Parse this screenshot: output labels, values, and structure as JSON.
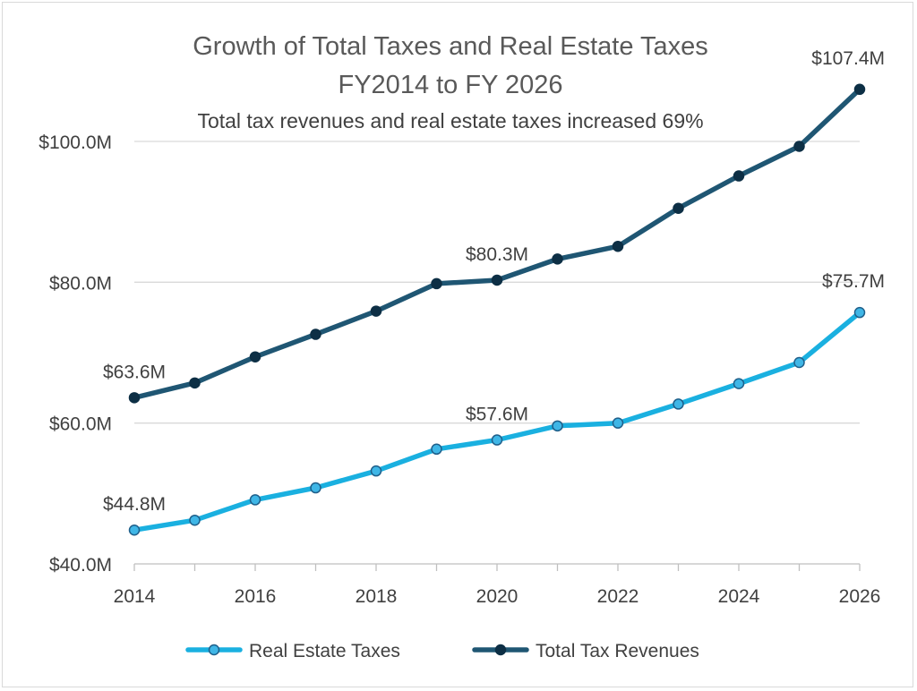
{
  "chart_data": {
    "type": "line",
    "title": "Growth of Total Taxes and Real Estate Taxes",
    "title_line2": "FY2014 to FY 2026",
    "subtitle": "Total tax revenues and real estate taxes increased 69%",
    "x": [
      2014,
      2015,
      2016,
      2017,
      2018,
      2019,
      2020,
      2021,
      2022,
      2023,
      2024,
      2025,
      2026
    ],
    "x_tick_labels": [
      "2014",
      "2016",
      "2018",
      "2020",
      "2022",
      "2024",
      "2026"
    ],
    "x_tick_values": [
      2014,
      2016,
      2018,
      2020,
      2022,
      2024,
      2026
    ],
    "y_tick_labels": [
      "$40.0M",
      "$60.0M",
      "$80.0M",
      "$100.0M"
    ],
    "y_tick_values": [
      40,
      60,
      80,
      100
    ],
    "xlim": [
      2014,
      2026
    ],
    "ylim": [
      40,
      105
    ],
    "xlabel": "",
    "ylabel": "",
    "grid": true,
    "legend_position": "bottom",
    "series": [
      {
        "name": "Real Estate Taxes",
        "color": "#1ab0e0",
        "marker_fill": "#3fb6e6",
        "marker_stroke": "#1f5f8a",
        "values": [
          44.8,
          46.2,
          49.1,
          50.8,
          53.2,
          56.3,
          57.6,
          59.6,
          60.0,
          62.7,
          65.6,
          68.6,
          75.7
        ],
        "labels": [
          {
            "index": 0,
            "text": "$44.8M"
          },
          {
            "index": 6,
            "text": "$57.6M"
          },
          {
            "index": 12,
            "text": "$75.7M"
          }
        ]
      },
      {
        "name": "Total Tax Revenues",
        "color": "#1f5673",
        "marker_fill": "#0d2f45",
        "marker_stroke": "#0d2f45",
        "values": [
          63.6,
          65.7,
          69.4,
          72.6,
          75.9,
          79.8,
          80.3,
          83.3,
          85.1,
          90.5,
          95.1,
          99.3,
          107.4
        ],
        "labels": [
          {
            "index": 0,
            "text": "$63.6M"
          },
          {
            "index": 6,
            "text": "$80.3M"
          },
          {
            "index": 12,
            "text": "$107.4M"
          }
        ]
      }
    ]
  }
}
